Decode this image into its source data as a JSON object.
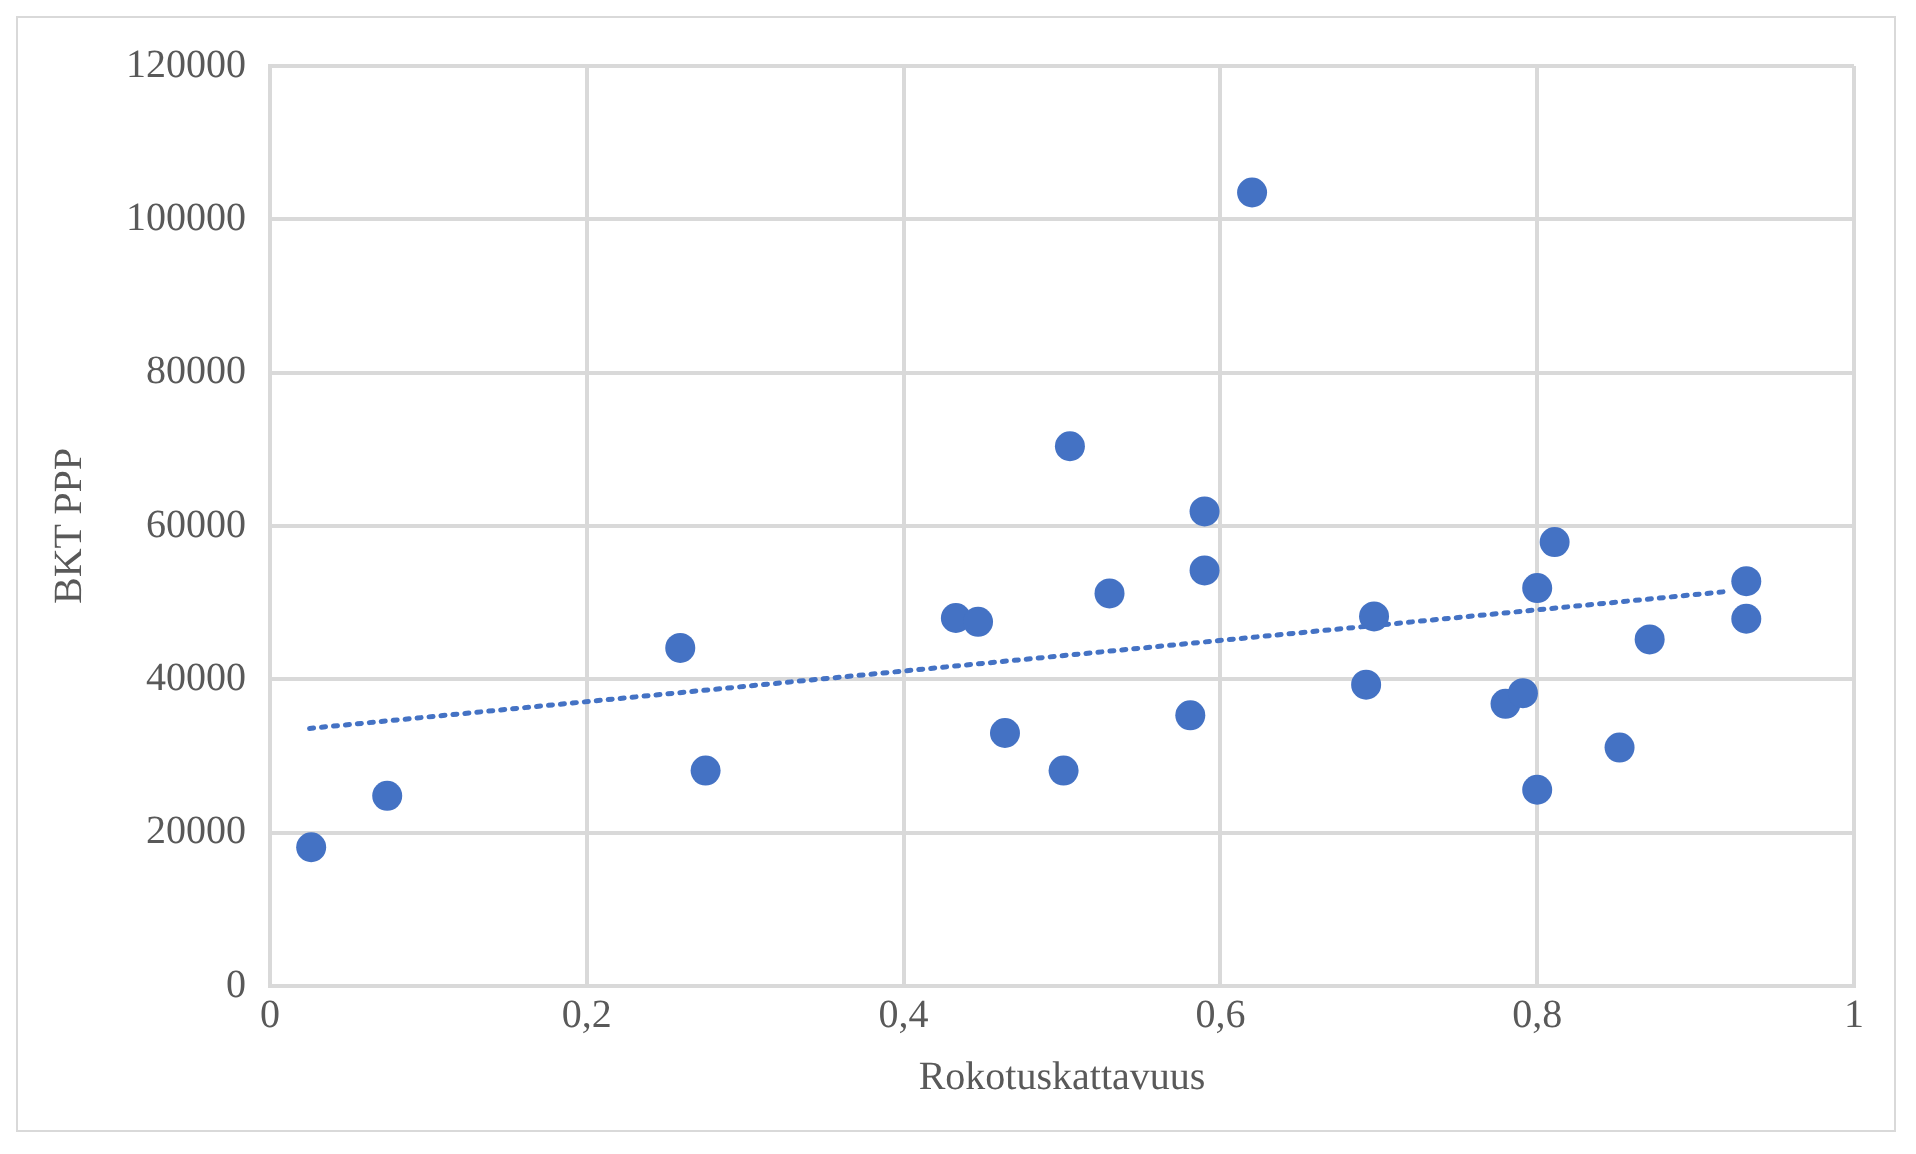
{
  "chart_data": {
    "type": "scatter",
    "xlabel": "Rokotuskattavuus",
    "ylabel": "BKT PPP",
    "xlim": [
      0,
      1
    ],
    "xticks": [
      0,
      {
        "value": 0.2,
        "label": "0,2"
      },
      {
        "value": 0.4,
        "label": "0,4"
      },
      {
        "value": 0.6,
        "label": "0,6"
      },
      {
        "value": 0.8,
        "label": "0,8"
      },
      1
    ],
    "ylim": [
      0,
      120000
    ],
    "yticks": [
      0,
      20000,
      40000,
      60000,
      80000,
      100000,
      120000
    ],
    "grid": true,
    "legend": false,
    "marker": "circle",
    "series": [
      {
        "color": "#4472c4",
        "x": [
          0.026,
          0.074,
          0.259,
          0.275,
          0.433,
          0.447,
          0.464,
          0.501,
          0.505,
          0.62,
          0.59,
          0.53,
          0.59,
          0.581,
          0.697,
          0.692,
          0.78,
          0.791,
          0.8,
          0.8,
          0.811,
          0.852,
          0.871,
          0.932,
          0.932
        ],
        "values": [
          18100,
          24800,
          44100,
          28100,
          48000,
          47500,
          33000,
          28100,
          70400,
          103500,
          61900,
          51200,
          54200,
          35300,
          48200,
          39300,
          36800,
          38200,
          25600,
          51900,
          57900,
          31100,
          45200,
          52800,
          47900
        ]
      },
      {
        "type": "line",
        "color": "#4472c4",
        "line_style": "dotted",
        "marker": "none",
        "x": [
          0.025,
          0.922
        ],
        "values": [
          33600,
          51500
        ]
      }
    ]
  }
}
